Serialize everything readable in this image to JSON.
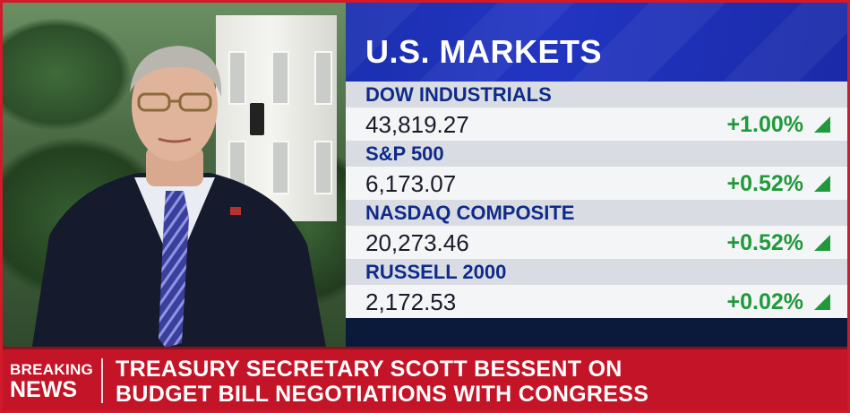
{
  "panel": {
    "title": "U.S. MARKETS",
    "rows": [
      {
        "name": "DOW INDUSTRIALS",
        "price": "43,819.27",
        "change": "+1.00%"
      },
      {
        "name": "S&P 500",
        "price": "6,173.07",
        "change": "+0.52%"
      },
      {
        "name": "NASDAQ COMPOSITE",
        "price": "20,273.46",
        "change": "+0.52%"
      },
      {
        "name": "RUSSELL 2000",
        "price": "2,172.53",
        "change": "+0.02%"
      }
    ]
  },
  "ticker": {
    "label_line1": "BREAKING",
    "label_line2": "NEWS",
    "headline_line1": "TREASURY SECRETARY SCOTT BESSENT ON",
    "headline_line2": "BUDGET BILL NEGOTIATIONS WITH CONGRESS"
  },
  "colors": {
    "panel_blue": "#1b2fb0",
    "name_text": "#0f2a8a",
    "up_green": "#1f9a3a",
    "breaking_red": "#c41427"
  },
  "icons": {
    "change_indicator": "up-triangle-icon"
  }
}
